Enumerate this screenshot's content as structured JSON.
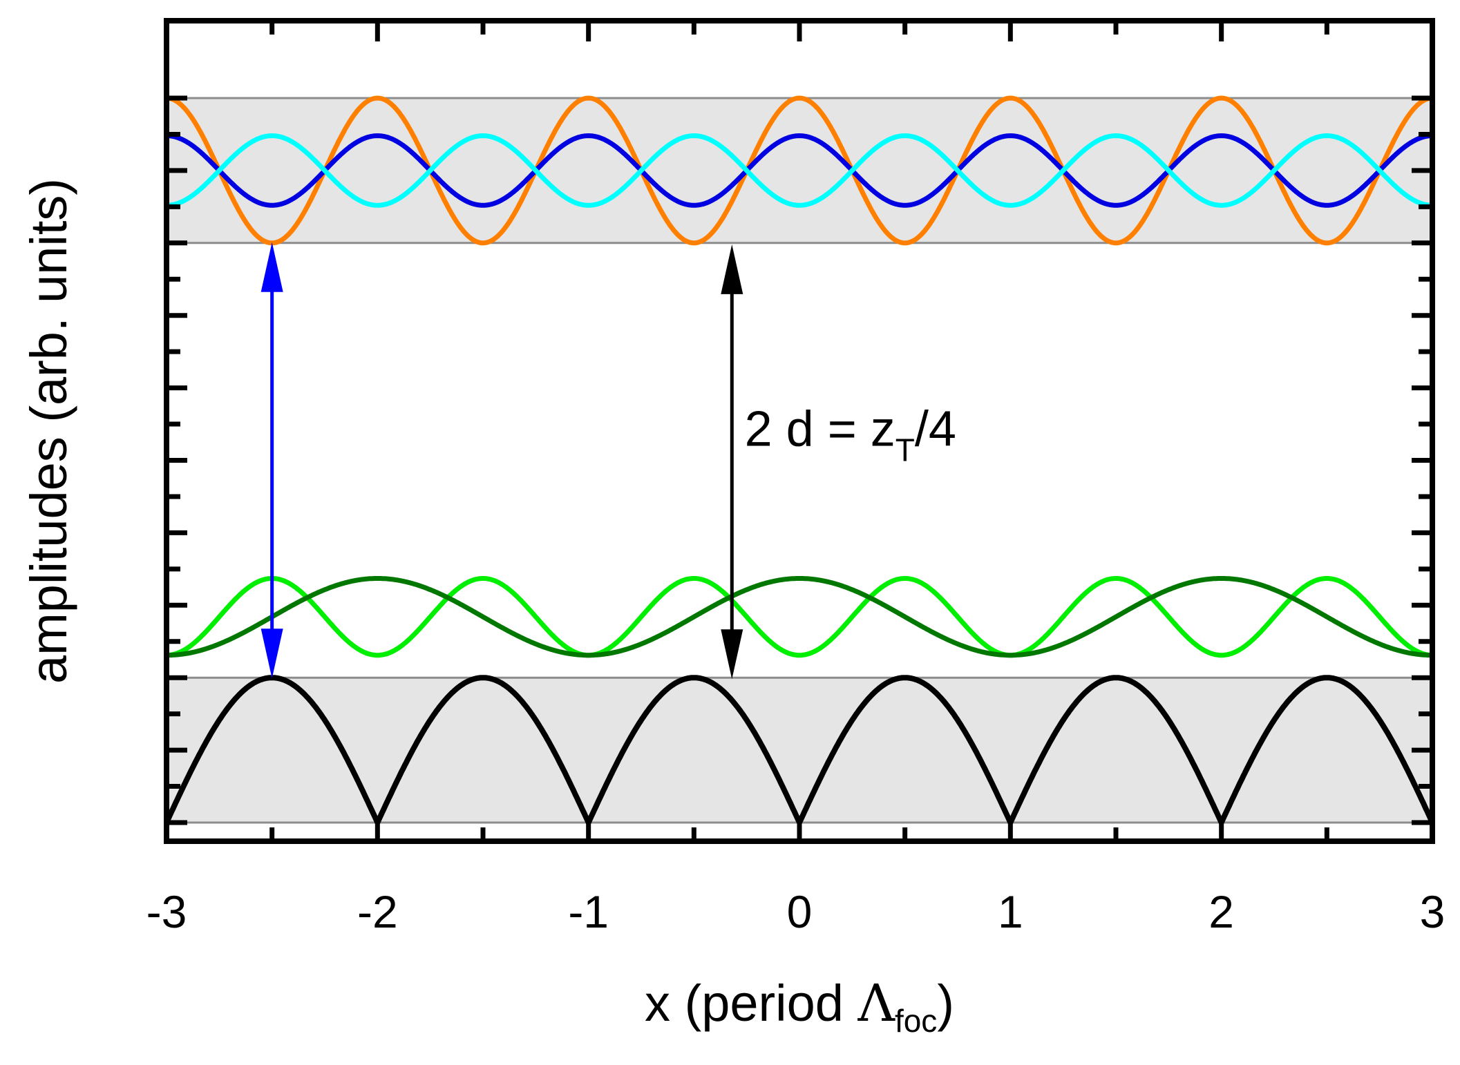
{
  "chart_data": {
    "type": "line",
    "xlabel": "x (period ",
    "xlabel_symbol": "Λ",
    "xlabel_sub": "foc",
    "xlabel_close": ")",
    "ylabel": "amplitudes (arb. units)",
    "xlim": [
      -3,
      3
    ],
    "ylim": [
      0,
      1
    ],
    "x_ticks": [
      "-3",
      "-2",
      "-1",
      "0",
      "1",
      "2",
      "3"
    ],
    "y_tick_labels_shown": false,
    "grid": false,
    "legend": "none",
    "shaded_bands": [
      {
        "y_range": [
          0.0,
          0.2
        ],
        "color": "#e5e5e5"
      },
      {
        "y_range": [
          0.8,
          1.0
        ],
        "color": "#e5e5e5"
      }
    ],
    "series": [
      {
        "color": "#ff8000",
        "form": "cosine",
        "period": 1.0,
        "phase": 0.0,
        "center": 0.9,
        "amplitude": 0.1,
        "line_width": 7
      },
      {
        "color": "#0000e0",
        "form": "cosine",
        "period": 1.0,
        "phase": 0.0,
        "center": 0.9,
        "amplitude": 0.048,
        "line_width": 7
      },
      {
        "color": "#00ffff",
        "form": "cosine",
        "period": 1.0,
        "phase": 0.5,
        "center": 0.9,
        "amplitude": 0.048,
        "line_width": 7
      },
      {
        "color": "#00ee00",
        "form": "cosine",
        "period": 1.0,
        "phase": 0.5,
        "center": 0.284,
        "amplitude": 0.053,
        "line_width": 7
      },
      {
        "color": "#007800",
        "form": "cosine",
        "period": 2.0,
        "phase": 0.0,
        "center": 0.284,
        "amplitude": 0.053,
        "line_width": 7
      },
      {
        "color": "#000000",
        "form": "lens",
        "period": 1.0,
        "phase": 0.5,
        "center": 0.1,
        "amplitude": 0.1,
        "line_width": 8
      }
    ],
    "annotations": [
      {
        "type": "double-arrow",
        "x": -2.5,
        "y_from": 0.199,
        "y_to": 0.801,
        "color": "#0000ff"
      },
      {
        "type": "double-arrow",
        "x": -0.32,
        "y_from": 0.198,
        "y_to": 0.798,
        "color": "#000000"
      },
      {
        "type": "text",
        "x": -0.26,
        "y": 0.52,
        "text_main": "2 d = z",
        "text_sub": "T",
        "text_after": "/4",
        "color": "#000000"
      }
    ]
  }
}
